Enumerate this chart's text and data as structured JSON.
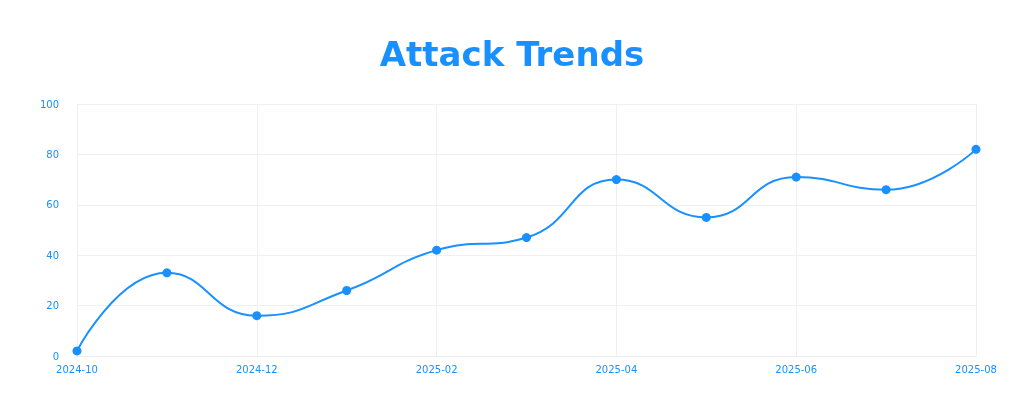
{
  "chart_data": {
    "type": "line",
    "title": "Attack Trends",
    "categories": [
      "2024-10",
      null,
      "2024-12",
      null,
      "2025-02",
      null,
      "2025-04",
      null,
      "2025-06",
      null,
      "2025-08"
    ],
    "series": [
      {
        "color": "#1890ff",
        "values": [
          2,
          33,
          16,
          26,
          42,
          47,
          70,
          55,
          71,
          66,
          82
        ]
      }
    ],
    "ylim": [
      0,
      100
    ],
    "yticks": [
      0,
      20,
      40,
      60,
      80,
      100
    ],
    "grid": true,
    "marker": "circle",
    "line_style": "solid"
  }
}
